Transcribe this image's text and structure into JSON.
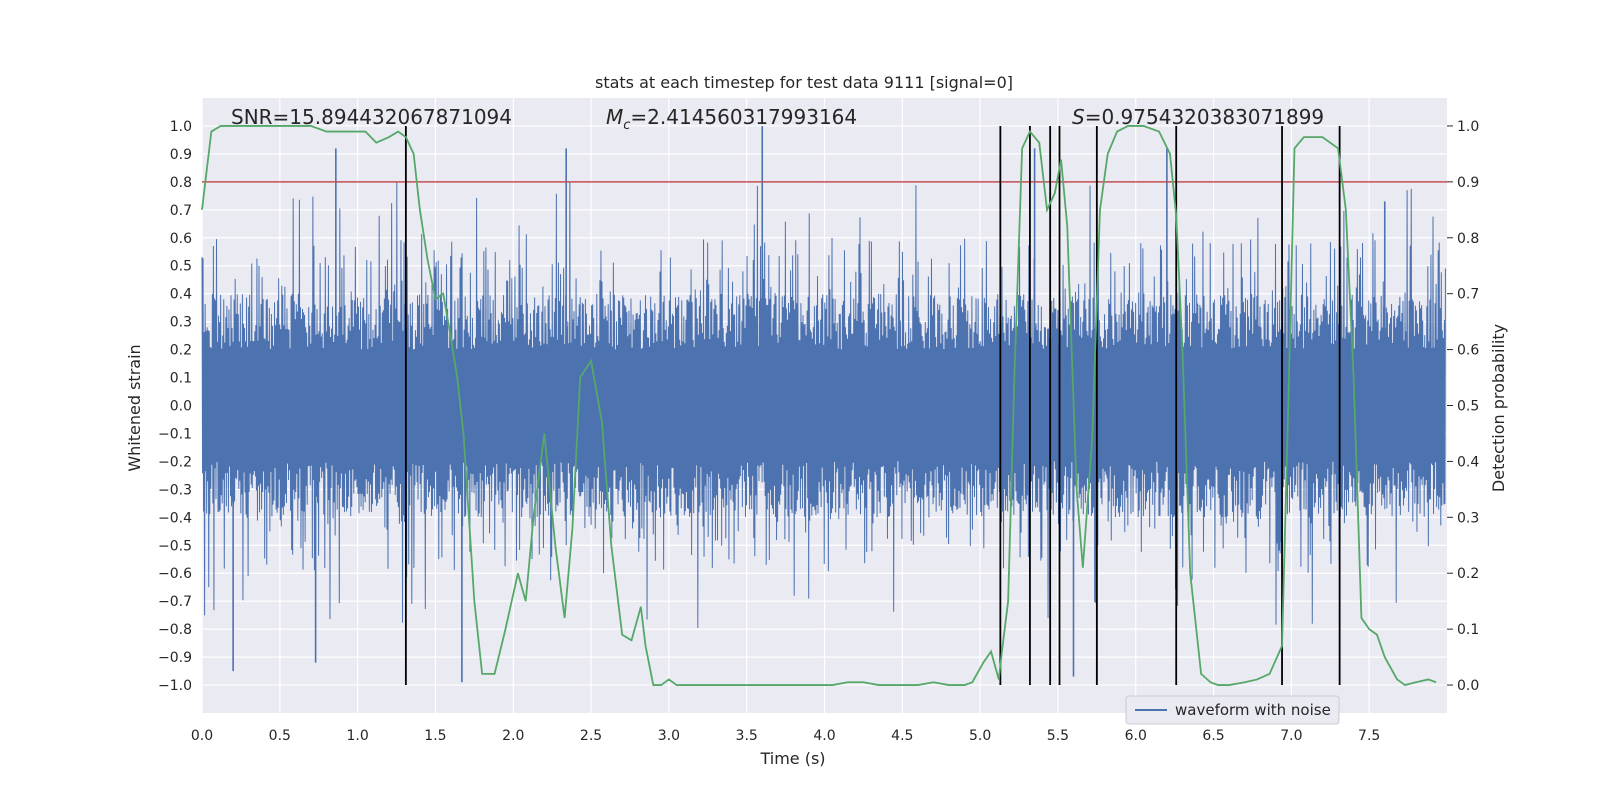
{
  "chart_data": {
    "type": "line",
    "title": "stats at each timestep for test data 9111 [signal=0]",
    "xlabel": "Time (s)",
    "ylabel": "Whitened strain",
    "y2label": "Detection probability",
    "xlim": [
      0.0,
      8.0
    ],
    "ylim": [
      -1.1,
      1.1
    ],
    "y2lim": [
      -0.05,
      1.05
    ],
    "x_ticks": [
      0.0,
      0.5,
      1.0,
      1.5,
      2.0,
      2.5,
      3.0,
      3.5,
      4.0,
      4.5,
      5.0,
      5.5,
      6.0,
      6.5,
      7.0,
      7.5
    ],
    "y_ticks": [
      1.0,
      0.9,
      0.8,
      0.7,
      0.6,
      0.5,
      0.4,
      0.3,
      0.2,
      0.1,
      0.0,
      -0.1,
      -0.2,
      -0.3,
      -0.4,
      -0.5,
      -0.6,
      -0.7,
      -0.8,
      -0.9,
      -1.0
    ],
    "y2_ticks": [
      1.0,
      0.9,
      0.8,
      0.7,
      0.6,
      0.5,
      0.4,
      0.3,
      0.2,
      0.1,
      0.0
    ],
    "annotations": {
      "snr": "SNR=15.894432067871094",
      "mc_symbol": "M",
      "mc_sub": "c",
      "mc_value": "=2.414560317993164",
      "s_symbol": "S",
      "s_value": "=0.9754320383071899"
    },
    "threshold": {
      "value": 0.9,
      "axis": "y2",
      "color": "#c44e52"
    },
    "vertical_markers": [
      1.31,
      5.13,
      5.32,
      5.45,
      5.51,
      5.75,
      6.26,
      6.94,
      7.31
    ],
    "legend": {
      "label": "waveform with noise",
      "placement": "lower-right"
    },
    "series": [
      {
        "name": "waveform with noise",
        "axis": "y",
        "color": "#4c72b0",
        "notable_peaks": [
          {
            "x": 0.2,
            "y": -0.95
          },
          {
            "x": 0.86,
            "y": 0.92
          },
          {
            "x": 0.73,
            "y": -0.92
          },
          {
            "x": 1.67,
            "y": -0.99
          },
          {
            "x": 2.34,
            "y": 0.92
          },
          {
            "x": 3.6,
            "y": 1.0
          },
          {
            "x": 5.35,
            "y": 0.92
          },
          {
            "x": 5.6,
            "y": -0.97
          },
          {
            "x": 5.75,
            "y": -0.99
          },
          {
            "x": 6.2,
            "y": 0.92
          },
          {
            "x": 7.6,
            "y": 0.73
          }
        ]
      },
      {
        "name": "detection probability",
        "axis": "y2",
        "color": "#55a868",
        "x": [
          0.0,
          0.06,
          0.12,
          0.2,
          0.3,
          0.4,
          0.5,
          0.6,
          0.7,
          0.8,
          0.85,
          0.9,
          1.0,
          1.05,
          1.12,
          1.2,
          1.26,
          1.31,
          1.36,
          1.4,
          1.45,
          1.5,
          1.55,
          1.6,
          1.64,
          1.68,
          1.75,
          1.8,
          1.88,
          1.95,
          2.03,
          2.08,
          2.13,
          2.2,
          2.27,
          2.33,
          2.38,
          2.43,
          2.5,
          2.57,
          2.63,
          2.7,
          2.76,
          2.82,
          2.85,
          2.9,
          2.95,
          3.0,
          3.05,
          3.1,
          3.3,
          3.5,
          3.7,
          3.9,
          4.05,
          4.15,
          4.25,
          4.35,
          4.45,
          4.6,
          4.7,
          4.8,
          4.9,
          4.95,
          5.02,
          5.07,
          5.12,
          5.14,
          5.18,
          5.22,
          5.27,
          5.32,
          5.38,
          5.43,
          5.48,
          5.52,
          5.56,
          5.62,
          5.66,
          5.72,
          5.77,
          5.82,
          5.88,
          5.95,
          6.05,
          6.15,
          6.22,
          6.26,
          6.3,
          6.35,
          6.42,
          6.48,
          6.53,
          6.6,
          6.7,
          6.78,
          6.86,
          6.94,
          6.98,
          7.02,
          7.08,
          7.15,
          7.2,
          7.25,
          7.3,
          7.35,
          7.4,
          7.45,
          7.5,
          7.55,
          7.6,
          7.68,
          7.73,
          7.8,
          7.88,
          7.93
        ],
        "y": [
          0.85,
          0.99,
          1.0,
          1.0,
          1.0,
          1.0,
          1.0,
          1.0,
          1.0,
          0.99,
          0.99,
          0.99,
          0.99,
          0.99,
          0.97,
          0.98,
          0.99,
          0.98,
          0.95,
          0.85,
          0.76,
          0.69,
          0.7,
          0.62,
          0.55,
          0.45,
          0.15,
          0.02,
          0.02,
          0.1,
          0.2,
          0.15,
          0.3,
          0.45,
          0.25,
          0.12,
          0.28,
          0.55,
          0.58,
          0.47,
          0.25,
          0.09,
          0.08,
          0.14,
          0.07,
          0.0,
          0.0,
          0.01,
          0.0,
          0.0,
          0.0,
          0.0,
          0.0,
          0.0,
          0.0,
          0.005,
          0.005,
          0.0,
          0.0,
          0.0,
          0.005,
          0.0,
          0.0,
          0.005,
          0.04,
          0.06,
          0.01,
          0.06,
          0.15,
          0.55,
          0.96,
          0.99,
          0.97,
          0.85,
          0.88,
          0.94,
          0.82,
          0.35,
          0.21,
          0.44,
          0.85,
          0.95,
          0.99,
          1.0,
          1.0,
          0.99,
          0.95,
          0.84,
          0.6,
          0.2,
          0.02,
          0.005,
          0.0,
          0.0,
          0.005,
          0.01,
          0.02,
          0.07,
          0.5,
          0.96,
          0.98,
          0.98,
          0.98,
          0.97,
          0.96,
          0.85,
          0.55,
          0.12,
          0.1,
          0.09,
          0.05,
          0.01,
          0.0,
          0.005,
          0.01,
          0.005
        ]
      }
    ]
  }
}
